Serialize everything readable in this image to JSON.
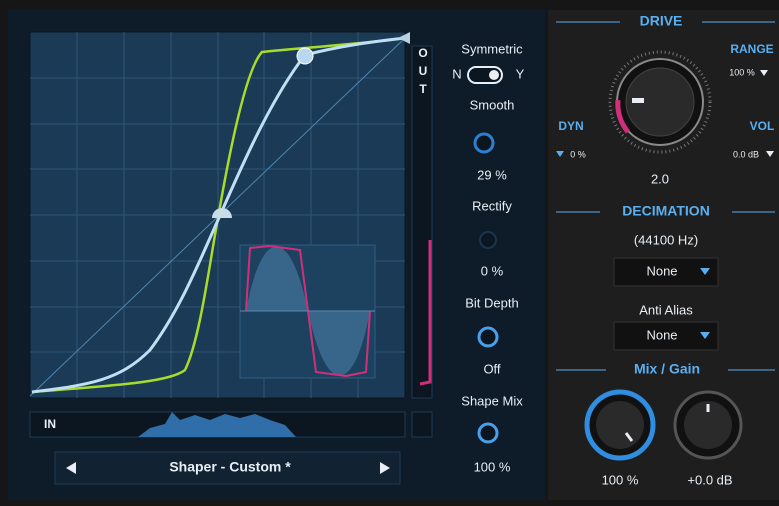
{
  "shaper": {
    "out_label": [
      "O",
      "U",
      "T"
    ],
    "in_label": "IN",
    "preset": "Shaper - Custom *",
    "controls": {
      "symmetric": "Symmetric",
      "sym_n": "N",
      "sym_y": "Y",
      "smooth": "Smooth",
      "smooth_value": "29 %",
      "rectify": "Rectify",
      "rectify_value": "0 %",
      "bit_depth": "Bit Depth",
      "bit_depth_value": "Off",
      "shape_mix": "Shape Mix",
      "shape_mix_value": "100 %"
    }
  },
  "drive": {
    "title": "DRIVE",
    "range": "RANGE",
    "range_value": "100 %",
    "dyn": "DYN",
    "dyn_value": "0 %",
    "vol": "VOL",
    "vol_value": "0.0 dB",
    "value": "2.0"
  },
  "decimation": {
    "title": "DECIMATION",
    "rate": "(44100 Hz)",
    "mode": "None",
    "anti_alias": "Anti Alias",
    "anti_alias_mode": "None"
  },
  "mix_gain": {
    "title": "Mix / Gain",
    "mix": "100 %",
    "gain": "+0.0 dB"
  }
}
